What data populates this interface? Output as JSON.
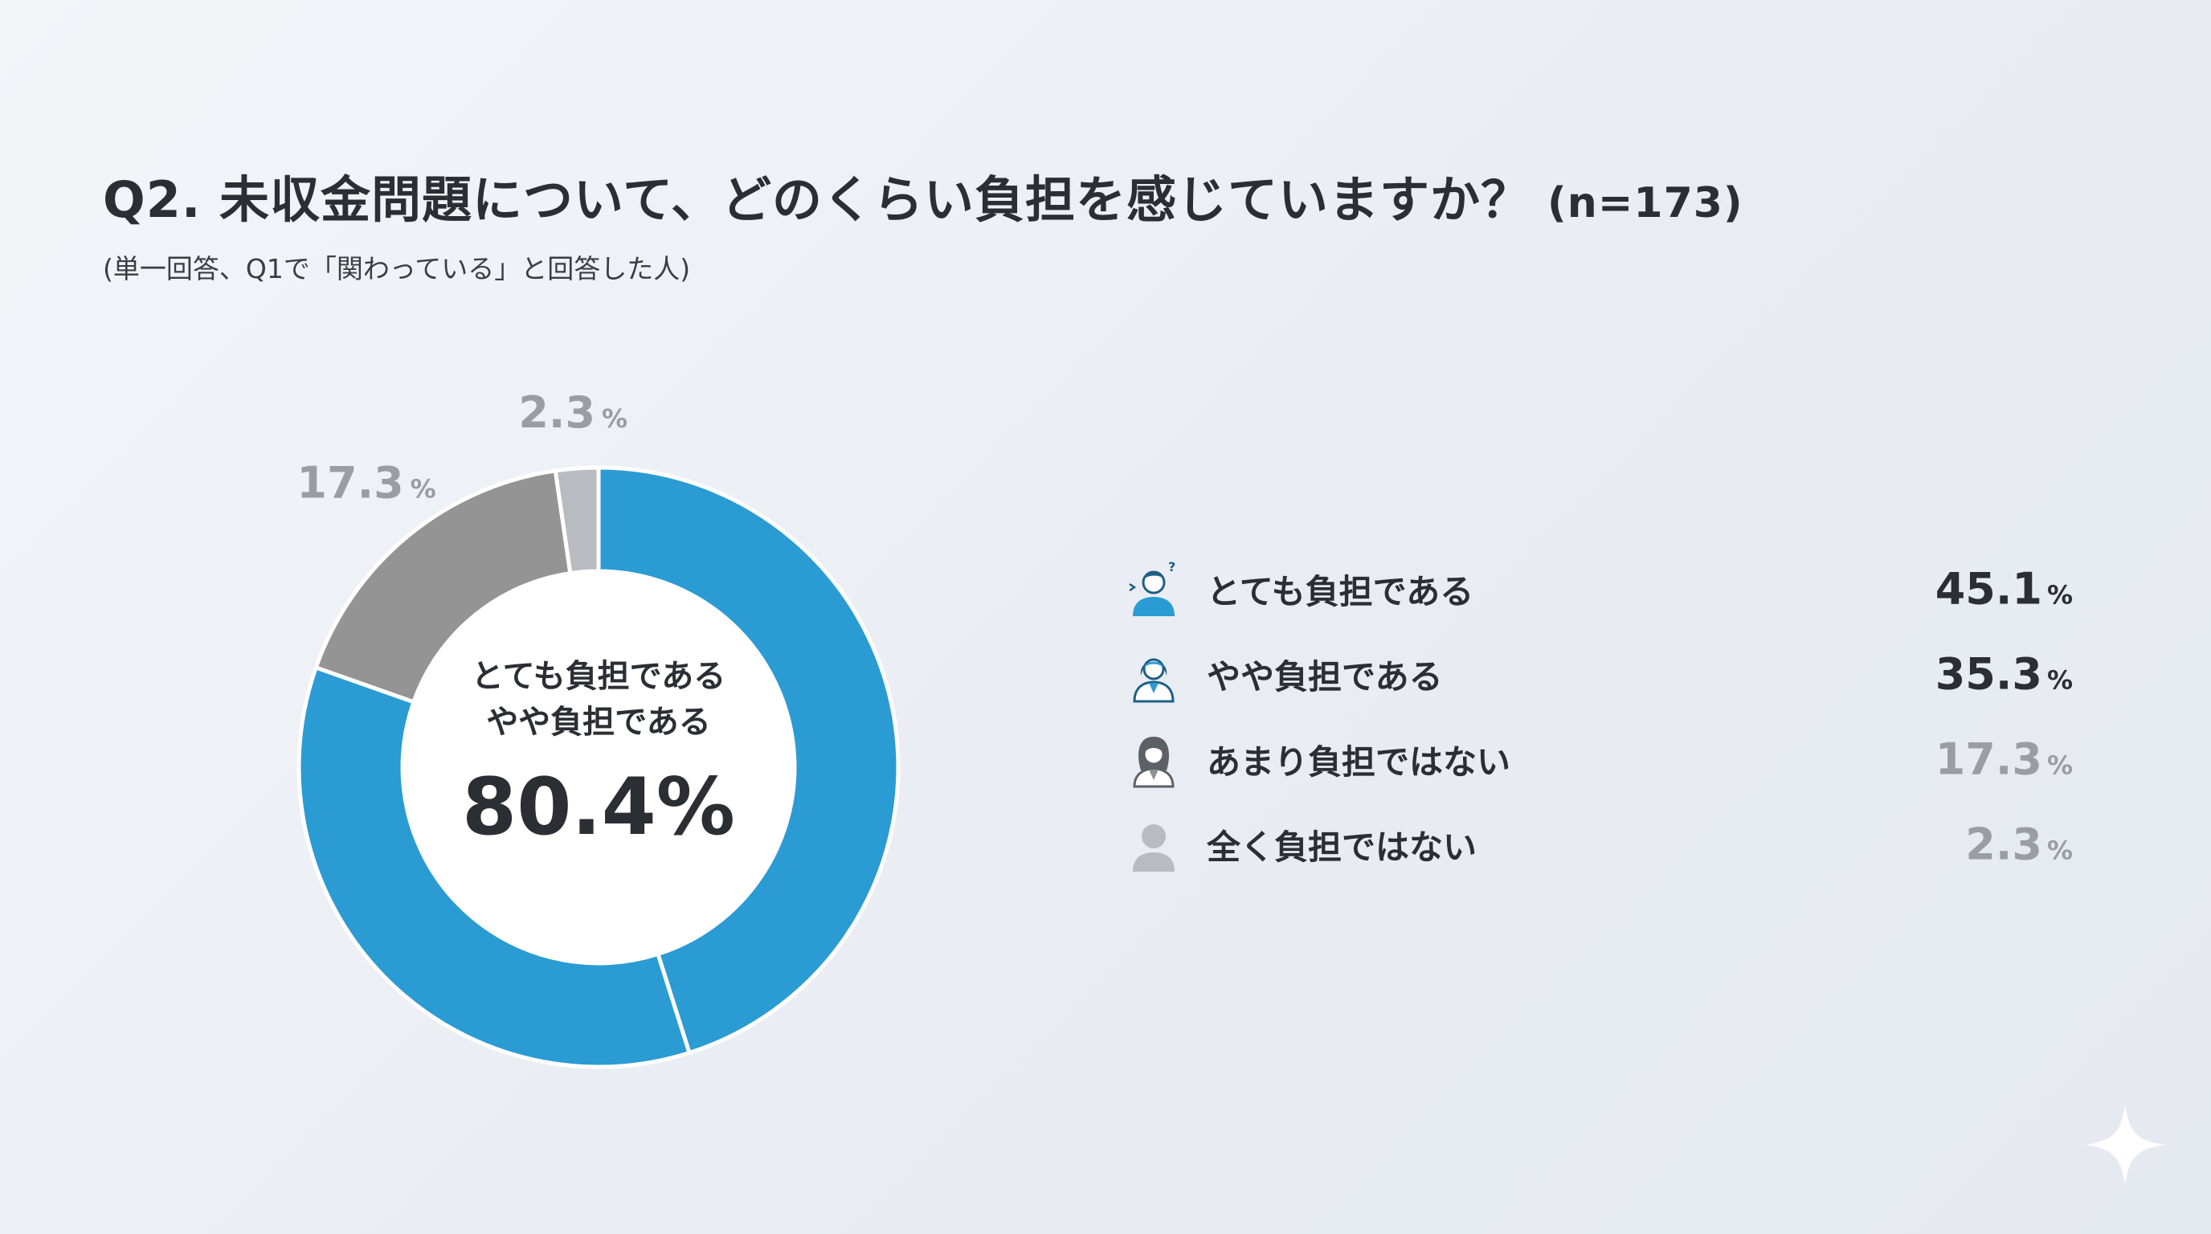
{
  "header": {
    "title": "Q2. 未収金問題について、どのくらい負担を感じていますか？",
    "sample_size": "(n=173)",
    "subtitle": "(単一回答、Q1で「関わっている」と回答した人)"
  },
  "chart_data": {
    "type": "pie",
    "unit": "%",
    "slices": [
      {
        "label": "とても負担である",
        "value": 45.1,
        "color": "#2b9bd3",
        "outer_label": ""
      },
      {
        "label": "やや負担である",
        "value": 35.3,
        "color": "#2b9bd3",
        "outer_label": ""
      },
      {
        "label": "あまり負担ではない",
        "value": 17.3,
        "color": "#949494",
        "outer_label": "17.3"
      },
      {
        "label": "全く負担ではない",
        "value": 2.3,
        "color": "#b8bcc1",
        "outer_label": "2.3"
      }
    ],
    "center": {
      "line1": "とても負担である",
      "line2": "やや負担である",
      "value": "80.4%"
    }
  },
  "legend": {
    "items": [
      {
        "label": "とても負担である",
        "value": "45.1",
        "unit": "%",
        "icon": "stressed-person-icon",
        "icon_color": "#2b9bd3",
        "value_color": "#2b2e33"
      },
      {
        "label": "やや負担である",
        "value": "35.3",
        "unit": "%",
        "icon": "woman-icon",
        "icon_color": "#2b9bd3",
        "value_color": "#2b2e33"
      },
      {
        "label": "あまり負担ではない",
        "value": "17.3",
        "unit": "%",
        "icon": "long-hair-woman-icon",
        "icon_color": "#8e9196",
        "value_color": "#9a9ea3"
      },
      {
        "label": "全く負担ではない",
        "value": "2.3",
        "unit": "%",
        "icon": "generic-person-icon",
        "icon_color": "#b8bcc1",
        "value_color": "#9a9ea3"
      }
    ]
  }
}
